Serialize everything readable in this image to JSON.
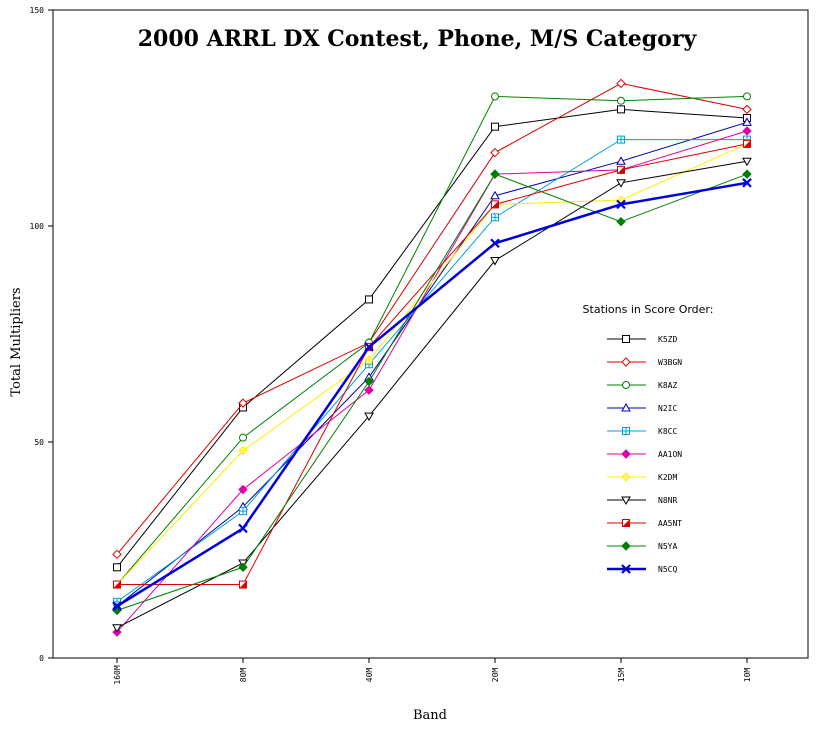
{
  "chart_data": {
    "type": "line",
    "title": "2000 ARRL DX Contest, Phone, M/S Category",
    "xlabel": "Band",
    "ylabel": "Total Multipliers",
    "categories": [
      "160M",
      "80M",
      "40M",
      "20M",
      "15M",
      "10M"
    ],
    "ylim": [
      0,
      150
    ],
    "yticks": [
      0,
      50,
      100,
      150
    ],
    "legend_title": "Stations in Score Order:",
    "legend_position": "right",
    "series": [
      {
        "name": "K5ZD",
        "color": "#000000",
        "marker": "square",
        "values": [
          21,
          58,
          83,
          123,
          127,
          125
        ]
      },
      {
        "name": "W3BGN",
        "color": "#dd0000",
        "marker": "diamond",
        "values": [
          24,
          59,
          73,
          117,
          133,
          127
        ]
      },
      {
        "name": "K8AZ",
        "color": "#008000",
        "marker": "circle",
        "values": [
          17,
          51,
          73,
          130,
          129,
          130
        ]
      },
      {
        "name": "N2IC",
        "color": "#0000aa",
        "marker": "triangle",
        "values": [
          12,
          35,
          65,
          107,
          115,
          124
        ]
      },
      {
        "name": "K8CC",
        "color": "#00a0e0",
        "marker": "square-cross",
        "values": [
          13,
          34,
          68,
          102,
          120,
          120
        ]
      },
      {
        "name": "AA1ON",
        "color": "#dd00aa",
        "marker": "diamond-filled",
        "values": [
          6,
          39,
          62,
          112,
          113,
          122
        ]
      },
      {
        "name": "K2DM",
        "color": "#ffee00",
        "marker": "diamond-cross",
        "values": [
          17,
          48,
          69,
          105,
          106,
          119
        ]
      },
      {
        "name": "N8NR",
        "color": "#000000",
        "marker": "triangle-down",
        "values": [
          7,
          22,
          56,
          92,
          110,
          115
        ]
      },
      {
        "name": "AA5NT",
        "color": "#dd0000",
        "marker": "square-half",
        "values": [
          17,
          17,
          72,
          105,
          113,
          119
        ]
      },
      {
        "name": "N5YA",
        "color": "#008000",
        "marker": "diamond-filled",
        "values": [
          11,
          21,
          64,
          112,
          101,
          112
        ]
      },
      {
        "name": "N5CQ",
        "color": "#0000dd",
        "marker": "x-bold",
        "values": [
          12,
          30,
          72,
          96,
          105,
          110
        ]
      }
    ]
  }
}
